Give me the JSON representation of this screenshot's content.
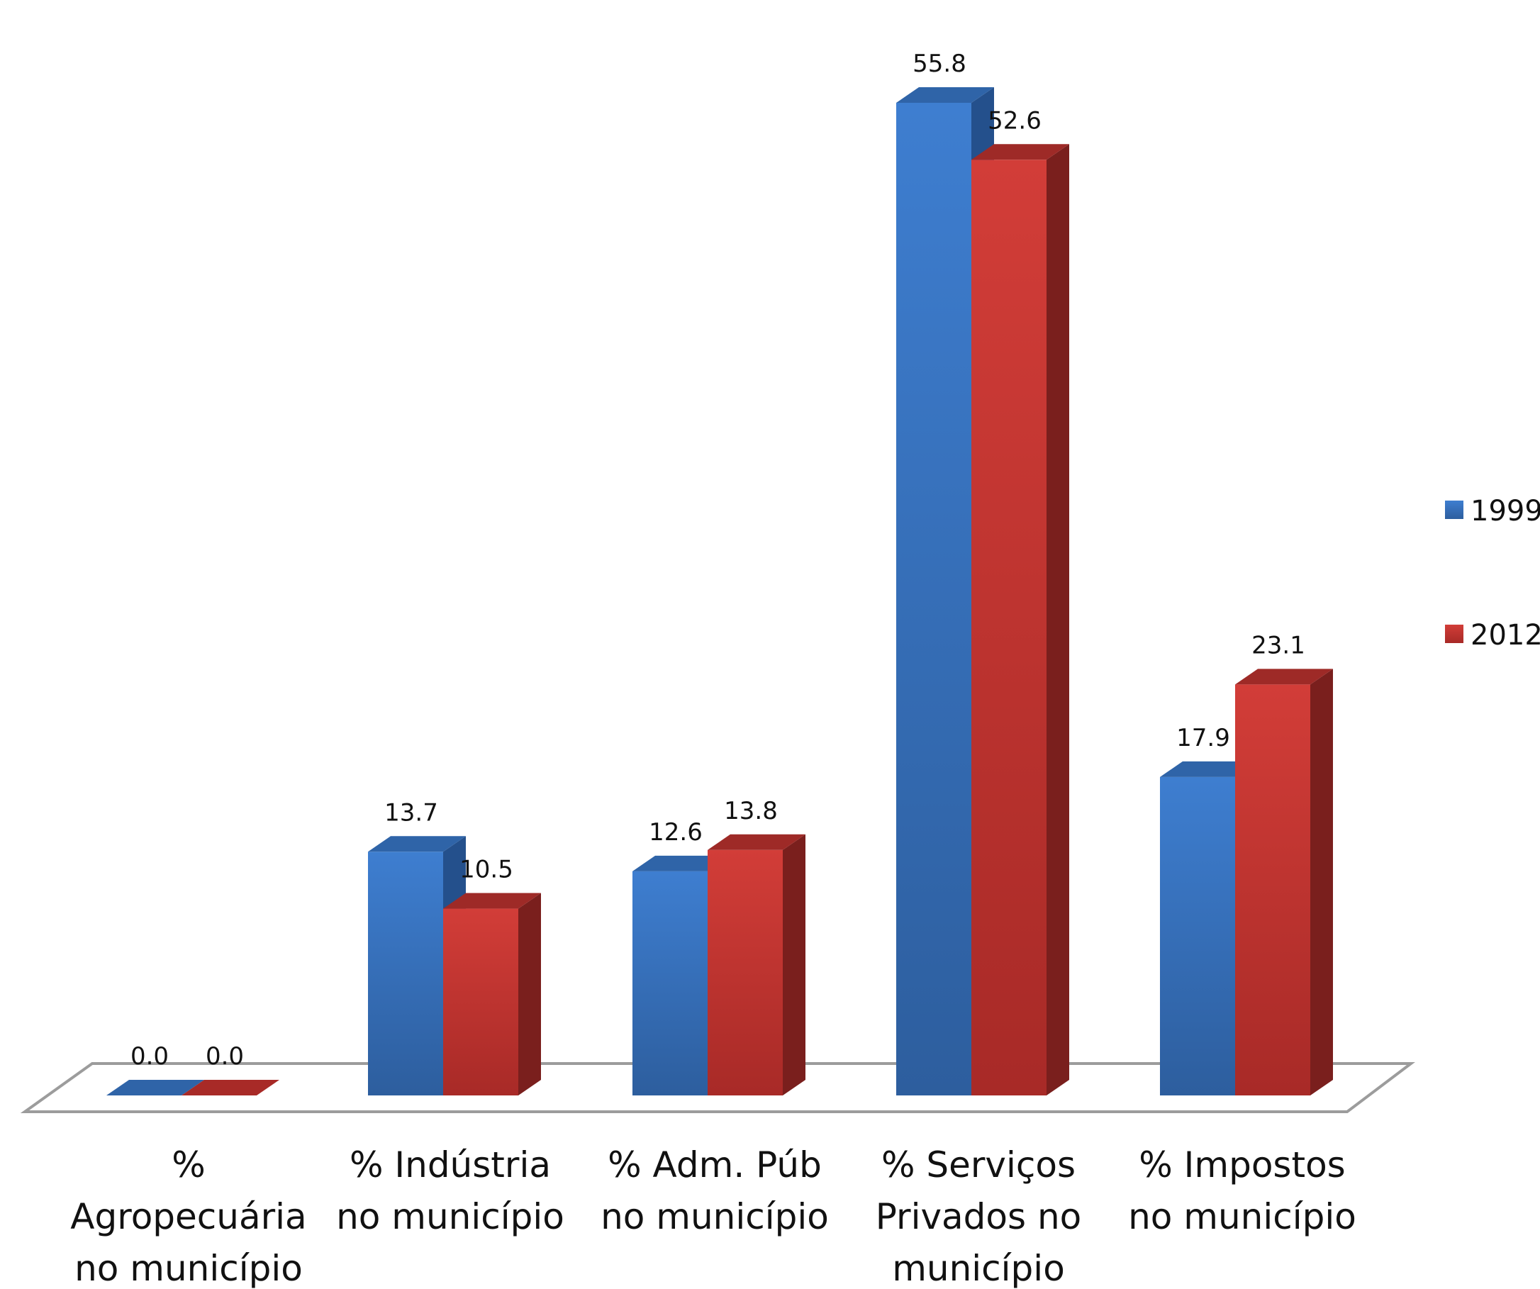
{
  "chart_data": {
    "type": "bar",
    "categories": [
      [
        "%",
        "Agropecuária",
        "no município"
      ],
      [
        "% Indústria",
        "no município"
      ],
      [
        "% Adm. Púb",
        "no município"
      ],
      [
        "% Serviços",
        "Privados no",
        "município"
      ],
      [
        "% Impostos",
        "no município"
      ]
    ],
    "series": [
      {
        "name": "1999",
        "color": "#3a77c6",
        "values": [
          0.0,
          13.7,
          12.6,
          55.8,
          17.9
        ],
        "labels": [
          "0.0",
          "13.7",
          "12.6",
          "55.8",
          "17.9"
        ]
      },
      {
        "name": "2012",
        "color": "#c83a36",
        "values": [
          0.0,
          10.5,
          13.8,
          52.6,
          23.1
        ],
        "labels": [
          "0.0",
          "10.5",
          "13.8",
          "52.6",
          "23.1"
        ]
      }
    ],
    "title": "",
    "xlabel": "",
    "ylabel": "",
    "ylim": [
      0,
      60
    ],
    "grid": false,
    "legend": "right",
    "style": "3d-clustered-column"
  }
}
